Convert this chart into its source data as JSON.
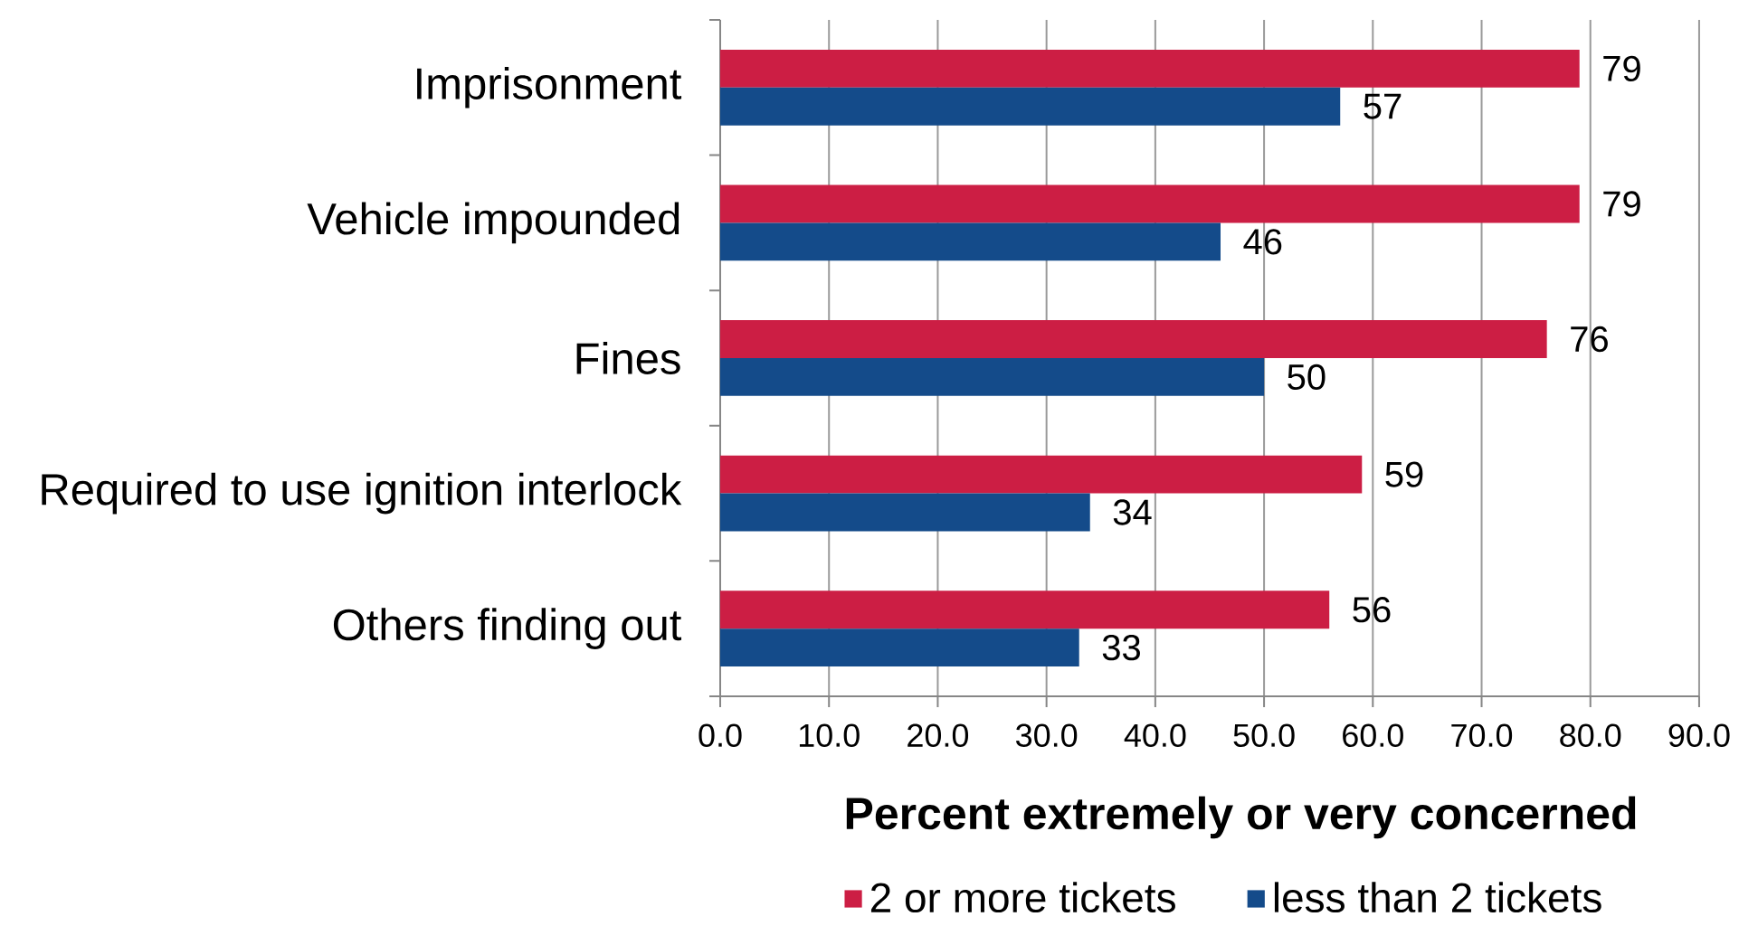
{
  "chart_data": {
    "type": "bar",
    "orientation": "horizontal",
    "categories": [
      "Imprisonment",
      "Vehicle impounded",
      "Fines",
      "Required to use ignition interlock",
      "Others finding out"
    ],
    "series": [
      {
        "name": "2 or more tickets",
        "color": "#cc1e44",
        "values": [
          79,
          79,
          76,
          59,
          56
        ]
      },
      {
        "name": "less than 2 tickets",
        "color": "#144b8a",
        "values": [
          57,
          46,
          50,
          34,
          33
        ]
      }
    ],
    "xlabel": "Percent extremely or very concerned",
    "xlim": [
      0,
      90
    ],
    "xticks": [
      {
        "value": 0,
        "label": "0.0"
      },
      {
        "value": 10,
        "label": "10.0"
      },
      {
        "value": 20,
        "label": "20.0"
      },
      {
        "value": 30,
        "label": "30.0"
      },
      {
        "value": 40,
        "label": "40.0"
      },
      {
        "value": 50,
        "label": "50.0"
      },
      {
        "value": 60,
        "label": "60.0"
      },
      {
        "value": 70,
        "label": "70.0"
      },
      {
        "value": 80,
        "label": "80.0"
      },
      {
        "value": 90,
        "label": "90.0"
      }
    ],
    "grid": "x",
    "legend": "bottom",
    "data_labels": true
  }
}
